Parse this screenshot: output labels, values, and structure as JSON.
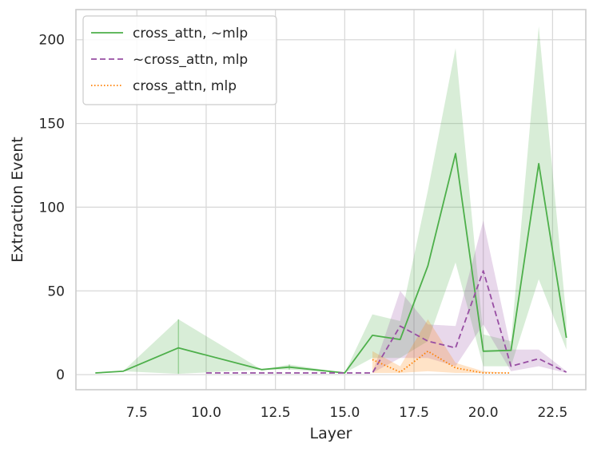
{
  "chart_data": {
    "type": "line",
    "title": "",
    "xlabel": "Layer",
    "ylabel": "Extraction Event",
    "xlim": [
      5.3,
      23.7
    ],
    "ylim": [
      -9,
      218
    ],
    "x_ticks": [
      7.5,
      10.0,
      12.5,
      15.0,
      17.5,
      20.0,
      22.5
    ],
    "x_tick_labels": [
      "7.5",
      "10.0",
      "12.5",
      "15.0",
      "17.5",
      "20.0",
      "22.5"
    ],
    "y_ticks": [
      0,
      50,
      100,
      150,
      200
    ],
    "y_tick_labels": [
      "0",
      "50",
      "100",
      "150",
      "200"
    ],
    "grid": true,
    "legend_position": "top-left",
    "series": [
      {
        "name": "cross_attn, ~mlp",
        "color": "#4daf4a",
        "dash": "solid",
        "x": [
          6,
          7,
          9,
          12,
          13,
          15,
          16,
          17,
          18,
          19,
          20,
          21,
          22,
          23
        ],
        "y": [
          1,
          2,
          16,
          3,
          4.5,
          1,
          23.5,
          21,
          65,
          132,
          14,
          14.5,
          126,
          22
        ],
        "ci_lower": [
          1,
          2,
          0.5,
          3,
          3,
          1,
          10,
          10,
          20,
          67,
          5,
          5,
          57,
          15
        ],
        "ci_upper": [
          1,
          2,
          33,
          3,
          6,
          1,
          36,
          32,
          110,
          195,
          24,
          20,
          208,
          34
        ]
      },
      {
        "name": "~cross_attn, mlp",
        "color": "#984ea3",
        "dash": "dashed",
        "x": [
          10,
          11,
          12,
          13,
          14,
          15,
          16,
          17,
          18,
          19,
          20,
          21,
          22,
          23
        ],
        "y": [
          1,
          1,
          1,
          1,
          1,
          1,
          1,
          29,
          20,
          16,
          62,
          5,
          9.5,
          1.5
        ],
        "ci_lower": [
          1,
          1,
          1,
          1,
          1,
          1,
          1,
          10,
          10,
          5,
          30,
          2,
          5,
          1
        ],
        "ci_upper": [
          1,
          1,
          1,
          1,
          1,
          1,
          1,
          50,
          30,
          29,
          92,
          15,
          15,
          2
        ]
      },
      {
        "name": "cross_attn, mlp",
        "color": "#ff7f00",
        "dash": "dotted",
        "x": [
          16,
          17,
          18,
          19,
          20,
          21
        ],
        "y": [
          9,
          1.5,
          14,
          4,
          1,
          1
        ],
        "ci_lower": [
          1,
          1,
          2,
          1,
          1,
          1
        ],
        "ci_upper": [
          14,
          5,
          33,
          7,
          2,
          1
        ]
      }
    ]
  }
}
